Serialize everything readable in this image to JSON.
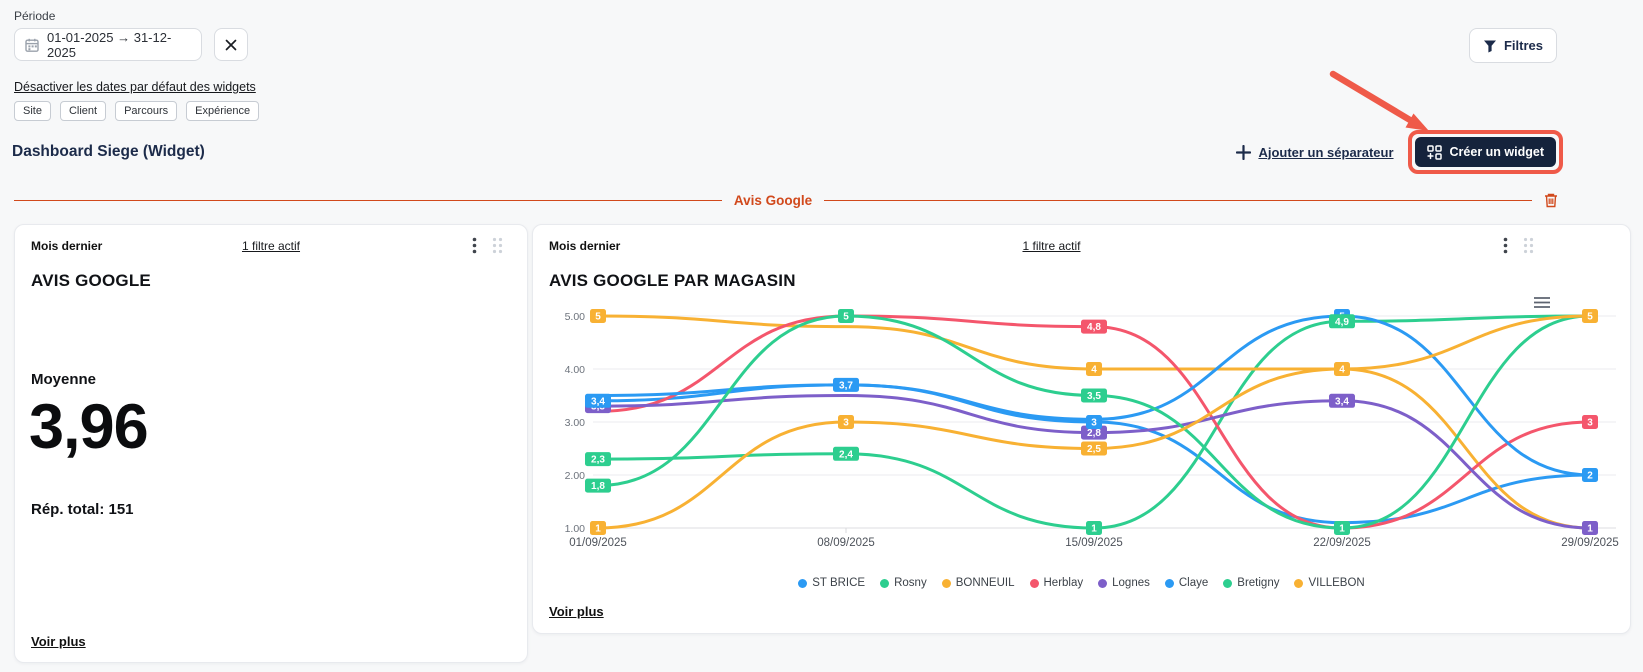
{
  "colors": {
    "accent_orange": "#d1491c",
    "navy_button": "#15233c",
    "annotation_red": "#ef5a49"
  },
  "icons": {
    "date_field": "calendar-icon",
    "clear": "x-icon",
    "filters": "funnel-icon",
    "add_separator": "plus-icon",
    "create_widget": "widget-grid-plus-icon",
    "section_delete": "trash-icon",
    "card_menu": "kebab-icon",
    "card_drag": "drag-handle-icon",
    "chart_menu": "hamburger-menu-icon"
  },
  "toolbar": {
    "period_label": "Période",
    "period_value": "01-01-2025 → 31-12-2025",
    "disable_dates_link": "Désactiver les dates par défaut des widgets",
    "tags": [
      "Site",
      "Client",
      "Parcours",
      "Expérience"
    ],
    "filters_label": "Filtres"
  },
  "header": {
    "title": "Dashboard Siege (Widget)",
    "add_separator_label": "Ajouter un séparateur",
    "create_widget_label": "Créer un widget"
  },
  "section": {
    "title": "Avis Google"
  },
  "cards": {
    "average": {
      "period": "Mois dernier",
      "filter_link": "1 filtre actif",
      "title": "AVIS GOOGLE",
      "metric_label": "Moyenne",
      "metric_value": "3,96",
      "total_label": "Rép. total: 151",
      "see_more": "Voir plus"
    },
    "by_store": {
      "period": "Mois dernier",
      "filter_link": "1 filtre actif",
      "title": "AVIS GOOGLE PAR MAGASIN",
      "see_more": "Voir plus"
    }
  },
  "chart_data": {
    "type": "line",
    "x": [
      "01/09/2025",
      "08/09/2025",
      "15/09/2025",
      "22/09/2025",
      "29/09/2025"
    ],
    "ylim": [
      1,
      5
    ],
    "yticks": [
      "1.00",
      "2.00",
      "3.00",
      "4.00",
      "5.00"
    ],
    "grid": true,
    "legend_position": "bottom",
    "series": [
      {
        "name": "ST BRICE",
        "color": "#2b9af3",
        "values": [
          3.4,
          3.7,
          3.0,
          1.1,
          2.0
        ],
        "labels": [
          "3,4",
          "3,7",
          "3",
          null,
          "2"
        ]
      },
      {
        "name": "Rosny",
        "color": "#2dce8f",
        "values": [
          2.3,
          2.4,
          1.0,
          4.9,
          5.0
        ],
        "labels": [
          "2,3",
          "2,4",
          "1",
          "4,9",
          null
        ]
      },
      {
        "name": "BONNEUIL",
        "color": "#f8b133",
        "values": [
          5.0,
          4.8,
          4.0,
          4.0,
          1.0
        ],
        "labels": [
          "5",
          null,
          "4",
          "4",
          null
        ]
      },
      {
        "name": "Herblay",
        "color": "#f4566c",
        "values": [
          3.2,
          5.0,
          4.8,
          1.0,
          3.0
        ],
        "labels": [
          null,
          null,
          "4,8",
          null,
          "3"
        ]
      },
      {
        "name": "Lognes",
        "color": "#7d5fc9",
        "values": [
          3.3,
          3.5,
          2.8,
          3.4,
          1.0
        ],
        "labels": [
          "3,3",
          null,
          "2,8",
          "3,4",
          "1"
        ]
      },
      {
        "name": "Claye",
        "color": "#2b9af3",
        "values": [
          3.5,
          3.7,
          3.05,
          5.0,
          2.0
        ],
        "labels": [
          null,
          null,
          null,
          "5",
          null
        ]
      },
      {
        "name": "Bretigny",
        "color": "#2dce8f",
        "values": [
          1.8,
          5.0,
          3.5,
          1.0,
          5.0
        ],
        "labels": [
          "1,8",
          "5",
          "3,5",
          "1",
          null
        ]
      },
      {
        "name": "VILLEBON",
        "color": "#f8b133",
        "values": [
          1.0,
          3.0,
          2.5,
          4.0,
          5.0
        ],
        "labels": [
          "1",
          "3",
          "2,5",
          null,
          "5"
        ]
      }
    ]
  }
}
